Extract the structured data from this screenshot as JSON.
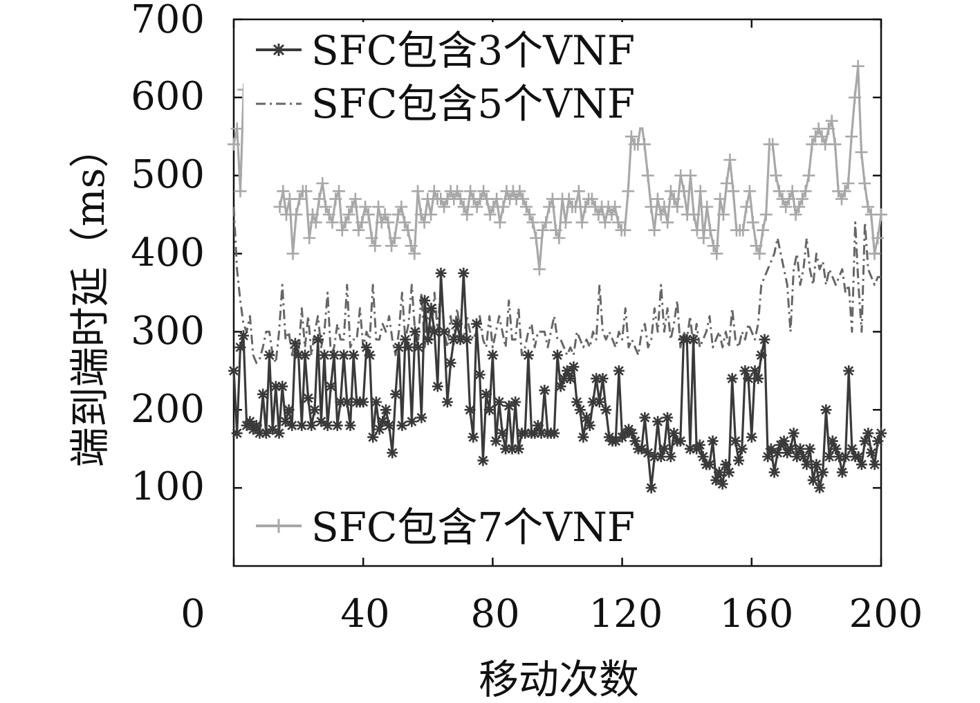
{
  "chart_data": {
    "type": "line",
    "title": "",
    "xlabel": "移动次数",
    "ylabel": "端到端时延（ms）",
    "xlim": [
      0,
      200
    ],
    "ylim": [
      0,
      700
    ],
    "xticks": [
      0,
      40,
      80,
      120,
      160,
      200
    ],
    "yticks": [
      100,
      200,
      300,
      400,
      500,
      600,
      700
    ],
    "grid": false,
    "legend": "top-left (3 & 5 VNF), bottom-left (7 VNF)",
    "series": [
      {
        "name": "SFC包含3个VNF",
        "color": "#3a3a3a",
        "marker": "asterisk",
        "dash": "solid",
        "values": [
          250,
          170,
          280,
          295,
          180,
          185,
          175,
          180,
          170,
          220,
          170,
          270,
          175,
          230,
          170,
          230,
          185,
          200,
          180,
          285,
          270,
          180,
          270,
          215,
          180,
          200,
          290,
          185,
          270,
          180,
          230,
          270,
          180,
          210,
          270,
          210,
          180,
          270,
          210,
          210,
          210,
          280,
          270,
          165,
          210,
          175,
          185,
          200,
          180,
          145,
          220,
          280,
          180,
          290,
          280,
          185,
          300,
          280,
          190,
          340,
          290,
          330,
          300,
          230,
          375,
          300,
          210,
          260,
          290,
          310,
          290,
          375,
          290,
          200,
          165,
          310,
          245,
          135,
          220,
          200,
          270,
          160,
          210,
          170,
          150,
          205,
          150,
          210,
          150,
          170,
          170,
          270,
          170,
          170,
          180,
          170,
          225,
          170,
          170,
          170,
          270,
          230,
          240,
          250,
          240,
          255,
          210,
          200,
          165,
          190,
          180,
          210,
          240,
          210,
          240,
          200,
          165,
          160,
          160,
          250,
          165,
          170,
          175,
          170,
          160,
          150,
          150,
          190,
          145,
          100,
          140,
          185,
          140,
          150,
          190,
          140,
          170,
          160,
          160,
          290,
          290,
          150,
          290,
          150,
          155,
          140,
          130,
          130,
          160,
          110,
          120,
          105,
          130,
          120,
          240,
          160,
          135,
          150,
          250,
          240,
          165,
          250,
          240,
          270,
          290,
          140,
          150,
          120,
          145,
          155,
          160,
          145,
          150,
          170,
          140,
          150,
          140,
          130,
          150,
          110,
          130,
          100,
          120,
          200,
          140,
          160,
          150,
          140,
          120,
          140,
          250,
          150,
          140,
          140,
          130,
          160,
          170,
          145,
          130,
          160,
          170
        ],
        "x_start": 0
      },
      {
        "name": "SFC包含5个VNF",
        "color": "#666666",
        "marker": "none",
        "dash": "dashdot",
        "values": [
          460,
          380,
          340,
          310,
          300,
          320,
          270,
          260,
          265,
          280,
          300,
          300,
          270,
          260,
          300,
          360,
          290,
          300,
          270,
          290,
          270,
          330,
          280,
          320,
          270,
          300,
          320,
          280,
          300,
          350,
          270,
          280,
          310,
          290,
          290,
          360,
          280,
          290,
          290,
          330,
          280,
          300,
          290,
          360,
          290,
          290,
          310,
          300,
          320,
          290,
          270,
          300,
          350,
          290,
          310,
          360,
          300,
          290,
          350,
          280,
          330,
          290,
          350,
          300,
          360,
          300,
          280,
          320,
          290,
          330,
          300,
          290,
          320,
          300,
          290,
          300,
          320,
          290,
          280,
          320,
          280,
          300,
          320,
          300,
          280,
          340,
          290,
          290,
          330,
          270,
          280,
          300,
          310,
          280,
          300,
          300,
          300,
          280,
          300,
          320,
          290,
          290,
          280,
          270,
          280,
          270,
          300,
          290,
          280,
          290,
          280,
          300,
          290,
          360,
          300,
          290,
          300,
          290,
          280,
          300,
          290,
          330,
          280,
          290,
          280,
          270,
          300,
          310,
          280,
          290,
          330,
          300,
          360,
          300,
          330,
          290,
          310,
          340,
          280,
          300,
          290,
          320,
          280,
          310,
          280,
          290,
          300,
          320,
          280,
          290,
          300,
          280,
          300,
          280,
          330,
          290,
          280,
          300,
          290,
          310,
          300,
          290,
          310,
          360,
          370,
          380,
          390,
          400,
          420,
          400,
          380,
          360,
          300,
          380,
          400,
          360,
          380,
          420,
          380,
          360,
          400,
          380,
          390,
          360,
          380,
          370,
          360,
          370,
          380,
          350,
          360,
          300,
          440,
          360,
          300,
          440,
          380,
          370,
          360,
          370,
          370
        ],
        "x_start": 0
      },
      {
        "name": "SFC包含7个VNF",
        "color": "#a8a8a8",
        "marker": "plus",
        "dash": "solid",
        "values": [
          540,
          560,
          480,
          610,
          null,
          null,
          null,
          null,
          null,
          null,
          null,
          null,
          null,
          null,
          460,
          480,
          450,
          470,
          400,
          450,
          470,
          480,
          480,
          420,
          450,
          440,
          470,
          490,
          460,
          450,
          440,
          470,
          480,
          430,
          440,
          450,
          460,
          470,
          430,
          440,
          460,
          450,
          420,
          410,
          460,
          440,
          450,
          440,
          410,
          420,
          450,
          460,
          440,
          430,
          410,
          400,
          480,
          450,
          440,
          470,
          450,
          480,
          470,
          470,
          460,
          470,
          480,
          470,
          480,
          470,
          460,
          450,
          480,
          470,
          460,
          470,
          480,
          470,
          450,
          460,
          470,
          440,
          460,
          480,
          470,
          480,
          470,
          480,
          470,
          460,
          450,
          440,
          420,
          380,
          430,
          440,
          460,
          470,
          430,
          420,
          470,
          440,
          470,
          460,
          460,
          480,
          440,
          460,
          470,
          470,
          460,
          450,
          460,
          440,
          460,
          450,
          460,
          440,
          430,
          430,
          480,
          550,
          540,
          540,
          570,
          540,
          500,
          460,
          430,
          470,
          450,
          460,
          440,
          480,
          470,
          460,
          500,
          480,
          450,
          500,
          450,
          430,
          480,
          420,
          460,
          430,
          410,
          400,
          470,
          450,
          490,
          520,
          480,
          430,
          430,
          430,
          460,
          480,
          440,
          410,
          400,
          430,
          450,
          540,
          540,
          500,
          480,
          470,
          460,
          470,
          480,
          450,
          460,
          470,
          480,
          500,
          540,
          550,
          560,
          550,
          540,
          560,
          570,
          540,
          480,
          470,
          480,
          490,
          550,
          600,
          640,
          530,
          490,
          460,
          450,
          400,
          420,
          450
        ],
        "x_start": 0
      }
    ]
  },
  "labels": {
    "xlabel": "移动次数",
    "ylabel": "端到端时延（ms）",
    "xticks": [
      "0",
      "40",
      "80",
      "120",
      "160",
      "200"
    ],
    "yticks": [
      "100",
      "200",
      "300",
      "400",
      "500",
      "600",
      "700"
    ],
    "legend_1": "SFC包含3个VNF",
    "legend_2": "SFC包含5个VNF",
    "legend_3": "SFC包含7个VNF"
  }
}
